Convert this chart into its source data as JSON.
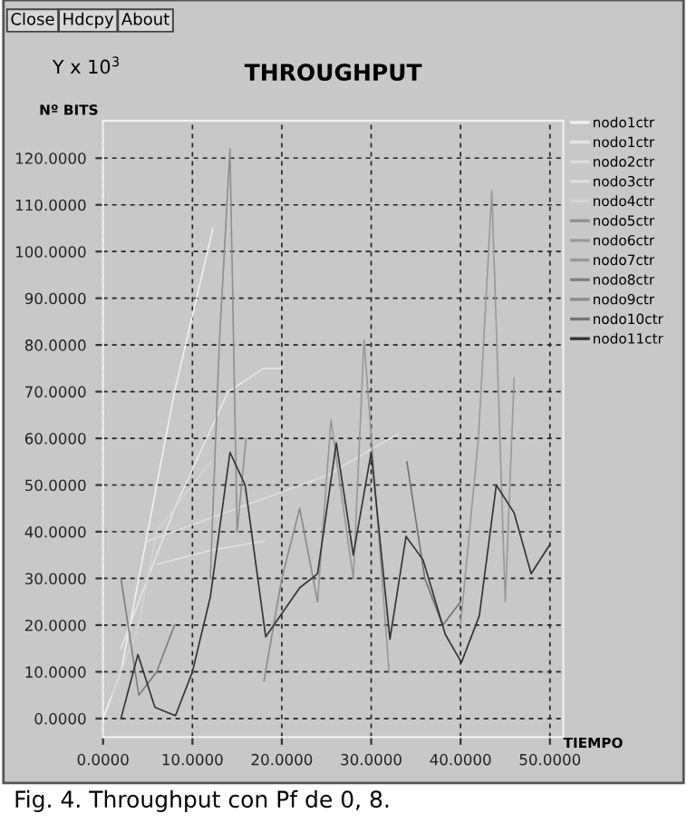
{
  "chart_data": {
    "type": "line",
    "title": "THROUGHPUT",
    "ylabel": "Nº BITS",
    "y2label": "Y x 10$^{3}$",
    "xlabel": "TIEMPO",
    "annotations": [
      "Close",
      "Hdcpy",
      "About",
      "Fig. 4. Throughput con Pf de 0, 8."
    ],
    "xlim": [
      0,
      51.5
    ],
    "ylim": [
      -4,
      128
    ],
    "xticks": [
      {
        "value": 0,
        "label": "0.0000"
      },
      {
        "value": 10,
        "label": "10.0000"
      },
      {
        "value": 20,
        "label": "20.0000"
      },
      {
        "value": 30,
        "label": "30.0000"
      },
      {
        "value": 40,
        "label": "40.0000"
      },
      {
        "value": 50,
        "label": "50.0000"
      }
    ],
    "yticks": [
      {
        "value": 0,
        "label": "0.0000"
      },
      {
        "value": 10,
        "label": "10.0000"
      },
      {
        "value": 20,
        "label": "20.0000"
      },
      {
        "value": 30,
        "label": "30.0000"
      },
      {
        "value": 40,
        "label": "40.0000"
      },
      {
        "value": 50,
        "label": "50.0000"
      },
      {
        "value": 60,
        "label": "60.0000"
      },
      {
        "value": 70,
        "label": "70.0000"
      },
      {
        "value": 80,
        "label": "80.0000"
      },
      {
        "value": 90,
        "label": "90.0000"
      },
      {
        "value": 100,
        "label": "100.0000"
      },
      {
        "value": 110,
        "label": "110.0000"
      },
      {
        "value": 120,
        "label": "120.0000"
      }
    ],
    "grid": true,
    "legend": "right",
    "marker": "none",
    "line_style": "solid",
    "series": [
      {
        "name": "nodo1ctr",
        "color": "#f0f0f0",
        "x": [
          0,
          2,
          5,
          8,
          12.3
        ],
        "values": [
          0,
          10,
          40,
          70,
          105
        ]
      },
      {
        "name": "nodo1ctr",
        "color": "#e6e6e6",
        "x": [
          2,
          8,
          14,
          18,
          20
        ],
        "values": [
          15,
          45,
          70,
          75,
          75
        ]
      },
      {
        "name": "nodo2ctr",
        "color": "#dedede",
        "x": [
          5,
          15,
          25,
          33
        ],
        "values": [
          38,
          45,
          52,
          61
        ]
      },
      {
        "name": "nodo3ctr",
        "color": "#e0e0e0",
        "x": [
          6,
          12,
          18
        ],
        "values": [
          33,
          36,
          38
        ]
      },
      {
        "name": "nodo4ctr",
        "color": "#d4d4d4",
        "x": [
          1,
          4,
          6,
          10,
          12
        ],
        "values": [
          5,
          20,
          40,
          50,
          55
        ]
      },
      {
        "name": "nodo5ctr",
        "color": "#909090",
        "x": [
          12,
          13,
          14.2,
          15,
          16
        ],
        "values": [
          30,
          80,
          122,
          40,
          60
        ]
      },
      {
        "name": "nodo6ctr",
        "color": "#9a9a9a",
        "x": [
          40,
          42,
          43.5,
          45,
          46
        ],
        "values": [
          20,
          60,
          113,
          25,
          73
        ]
      },
      {
        "name": "nodo7ctr",
        "color": "#999999",
        "x": [
          24,
          25.5,
          28,
          29.2,
          32
        ],
        "values": [
          25,
          64,
          30,
          81,
          10
        ]
      },
      {
        "name": "nodo8ctr",
        "color": "#7e7e7e",
        "x": [
          2,
          4,
          6,
          8
        ],
        "values": [
          30,
          5,
          10,
          20
        ]
      },
      {
        "name": "nodo9ctr",
        "color": "#8c8c8c",
        "x": [
          18,
          20,
          22,
          24
        ],
        "values": [
          8,
          30,
          45,
          25
        ]
      },
      {
        "name": "nodo10ctr",
        "color": "#737373",
        "x": [
          34,
          36,
          38,
          40
        ],
        "values": [
          55,
          30,
          20,
          25
        ]
      },
      {
        "name": "nodo11ctr",
        "color": "#333333",
        "x": [
          2,
          3.9,
          5.8,
          8.1,
          10,
          12,
          14.2,
          15.9,
          18.2,
          22,
          24,
          26.1,
          28,
          29,
          30,
          32.1,
          33.9,
          35.8,
          38.3,
          40.1,
          42.1,
          44,
          46,
          47.9,
          49.9
        ],
        "values": [
          0,
          13.7,
          2.4,
          0.6,
          10,
          26,
          57,
          50,
          17.5,
          28,
          31,
          59,
          35,
          46,
          57,
          17,
          39,
          34,
          18,
          12,
          22,
          50,
          44,
          31,
          37
        ]
      }
    ]
  }
}
